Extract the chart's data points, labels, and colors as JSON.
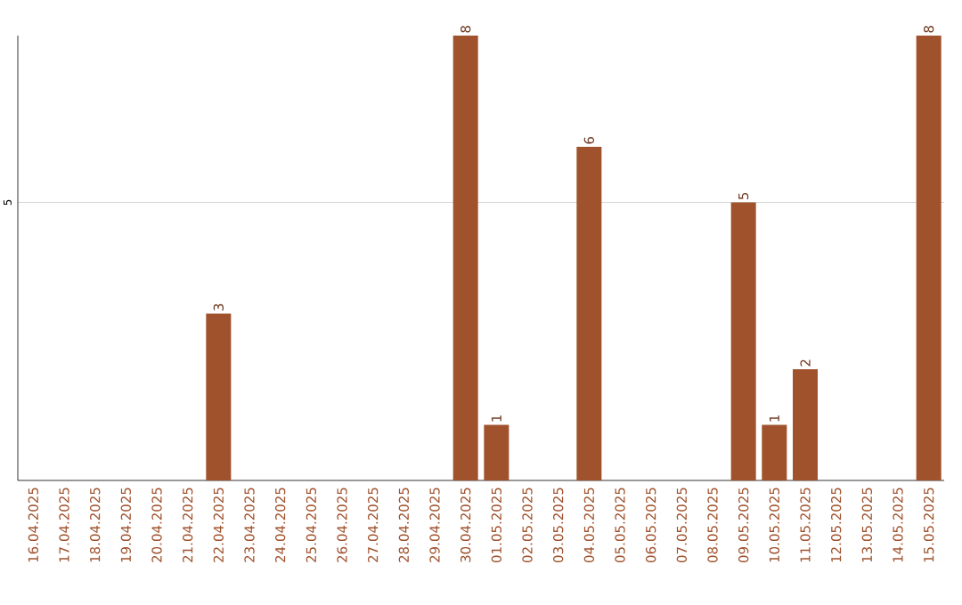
{
  "chart_data": {
    "type": "bar",
    "categories": [
      "16.04.2025",
      "17.04.2025",
      "18.04.2025",
      "19.04.2025",
      "20.04.2025",
      "21.04.2025",
      "22.04.2025",
      "23.04.2025",
      "24.04.2025",
      "25.04.2025",
      "26.04.2025",
      "27.04.2025",
      "28.04.2025",
      "29.04.2025",
      "30.04.2025",
      "01.05.2025",
      "02.05.2025",
      "03.05.2025",
      "04.05.2025",
      "05.05.2025",
      "06.05.2025",
      "07.05.2025",
      "08.05.2025",
      "09.05.2025",
      "10.05.2025",
      "11.05.2025",
      "12.05.2025",
      "13.05.2025",
      "14.05.2025",
      "15.05.2025"
    ],
    "values": [
      0,
      0,
      0,
      0,
      0,
      0,
      3,
      0,
      0,
      0,
      0,
      0,
      0,
      0,
      8,
      1,
      0,
      0,
      6,
      0,
      0,
      0,
      0,
      5,
      1,
      2,
      0,
      0,
      0,
      8
    ],
    "value_labels": [
      null,
      null,
      null,
      null,
      null,
      null,
      "3",
      null,
      null,
      null,
      null,
      null,
      null,
      null,
      "8",
      "1",
      null,
      null,
      "6",
      null,
      null,
      null,
      null,
      "5",
      "1",
      "2",
      null,
      null,
      null,
      "8"
    ],
    "color": "#a0522d",
    "ylim": [
      0,
      8
    ],
    "yticks": [
      5
    ],
    "grid": "y"
  }
}
